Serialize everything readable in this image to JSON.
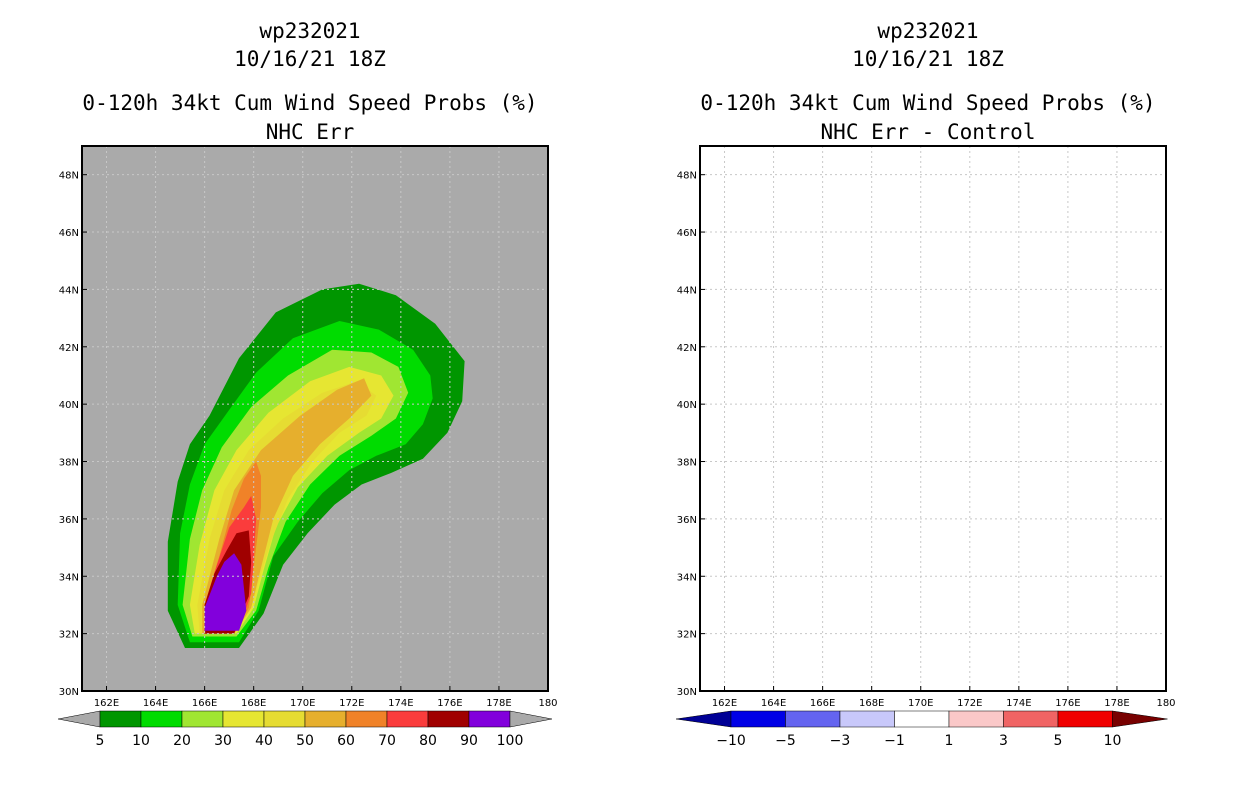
{
  "panels": [
    {
      "storm": "wp232021",
      "date": "10/16/21 18Z",
      "title1": "0-120h 34kt Cum Wind Speed Probs (%)",
      "title2": "NHC Err"
    },
    {
      "storm": "wp232021",
      "date": "10/16/21 18Z",
      "title1": "0-120h 34kt Cum Wind Speed Probs (%)",
      "title2": "NHC Err - Control"
    }
  ],
  "chart_data": [
    {
      "type": "heatmap",
      "title": "0-120h 34kt Cum Wind Speed Probs (%) NHC Err",
      "xlim": [
        161,
        180
      ],
      "ylim": [
        30,
        49
      ],
      "xticks": [
        "162E",
        "164E",
        "166E",
        "168E",
        "170E",
        "172E",
        "174E",
        "176E",
        "178E",
        "180"
      ],
      "yticks": [
        "30N",
        "32N",
        "34N",
        "36N",
        "38N",
        "40N",
        "42N",
        "44N",
        "46N",
        "48N"
      ],
      "grid": true,
      "background": "#aaaaaa",
      "colorbar": {
        "labels": [
          "5",
          "10",
          "20",
          "30",
          "40",
          "50",
          "60",
          "70",
          "80",
          "90",
          "100"
        ],
        "colors": [
          "#009600",
          "#00dc00",
          "#a0e632",
          "#e6e632",
          "#e6dc32",
          "#e6af2d",
          "#f08228",
          "#fa3c3c",
          "#a00000",
          "#8200dc"
        ],
        "extend_color": "#aaaaaa"
      },
      "contours": [
        {
          "level": 5,
          "color": "#009600",
          "points": [
            [
              164.5,
              32.8
            ],
            [
              164.5,
              35.2
            ],
            [
              164.9,
              37.3
            ],
            [
              165.4,
              38.6
            ],
            [
              166.2,
              39.6
            ],
            [
              167.4,
              41.6
            ],
            [
              168.9,
              43.2
            ],
            [
              170.8,
              44.0
            ],
            [
              172.3,
              44.2
            ],
            [
              173.8,
              43.8
            ],
            [
              175.4,
              42.8
            ],
            [
              176.6,
              41.5
            ],
            [
              176.5,
              40.1
            ],
            [
              175.9,
              39.0
            ],
            [
              174.9,
              38.1
            ],
            [
              173.6,
              37.6
            ],
            [
              172.4,
              37.2
            ],
            [
              171.3,
              36.5
            ],
            [
              170.2,
              35.5
            ],
            [
              169.2,
              34.4
            ],
            [
              168.4,
              32.7
            ],
            [
              167.4,
              31.5
            ],
            [
              165.2,
              31.5
            ]
          ]
        },
        {
          "level": 10,
          "color": "#00dc00",
          "points": [
            [
              164.9,
              33.0
            ],
            [
              165.0,
              35.5
            ],
            [
              165.4,
              37.2
            ],
            [
              166.0,
              38.6
            ],
            [
              167.0,
              39.8
            ],
            [
              168.1,
              41.1
            ],
            [
              169.6,
              42.3
            ],
            [
              171.5,
              42.9
            ],
            [
              173.1,
              42.6
            ],
            [
              174.5,
              41.9
            ],
            [
              175.2,
              41.0
            ],
            [
              175.3,
              40.2
            ],
            [
              174.9,
              39.3
            ],
            [
              174.2,
              38.6
            ],
            [
              173.0,
              38.2
            ],
            [
              171.9,
              37.7
            ],
            [
              170.8,
              36.9
            ],
            [
              169.8,
              35.9
            ],
            [
              168.8,
              34.7
            ],
            [
              168.2,
              32.8
            ],
            [
              167.4,
              31.7
            ],
            [
              165.4,
              31.7
            ]
          ]
        },
        {
          "level": 20,
          "color": "#a0e632",
          "points": [
            [
              165.1,
              33.0
            ],
            [
              165.4,
              35.3
            ],
            [
              165.9,
              37.0
            ],
            [
              166.7,
              38.5
            ],
            [
              167.9,
              39.9
            ],
            [
              169.4,
              41.0
            ],
            [
              171.2,
              41.9
            ],
            [
              172.8,
              41.8
            ],
            [
              173.9,
              41.3
            ],
            [
              174.3,
              40.4
            ],
            [
              173.8,
              39.5
            ],
            [
              172.8,
              38.9
            ],
            [
              171.5,
              38.2
            ],
            [
              170.3,
              37.2
            ],
            [
              169.3,
              35.9
            ],
            [
              168.6,
              34.3
            ],
            [
              168.1,
              32.8
            ],
            [
              167.3,
              31.9
            ],
            [
              165.5,
              31.9
            ]
          ]
        },
        {
          "level": 30,
          "color": "#e6e632",
          "points": [
            [
              165.4,
              33.0
            ],
            [
              165.8,
              35.1
            ],
            [
              166.4,
              37.0
            ],
            [
              167.3,
              38.4
            ],
            [
              168.6,
              39.7
            ],
            [
              170.3,
              40.8
            ],
            [
              171.9,
              41.3
            ],
            [
              173.2,
              41.0
            ],
            [
              173.7,
              40.3
            ],
            [
              173.2,
              39.5
            ],
            [
              172.3,
              39.0
            ],
            [
              171.0,
              38.2
            ],
            [
              169.8,
              37.1
            ],
            [
              168.9,
              35.7
            ],
            [
              168.4,
              34.2
            ],
            [
              168.0,
              32.9
            ],
            [
              167.3,
              32.0
            ],
            [
              165.6,
              32.0
            ]
          ]
        },
        {
          "level": 40,
          "color": "#e6dc32",
          "points": [
            [
              165.7,
              33.0
            ],
            [
              166.2,
              35.3
            ],
            [
              166.8,
              37.0
            ],
            [
              167.8,
              38.4
            ],
            [
              169.2,
              39.5
            ],
            [
              170.8,
              40.4
            ],
            [
              172.2,
              40.8
            ],
            [
              173.0,
              40.3
            ],
            [
              172.6,
              39.6
            ],
            [
              171.5,
              39.0
            ],
            [
              170.4,
              38.0
            ],
            [
              169.4,
              36.7
            ],
            [
              168.7,
              35.2
            ],
            [
              168.2,
              33.8
            ],
            [
              167.9,
              32.9
            ],
            [
              167.2,
              32.0
            ],
            [
              165.8,
              32.0
            ]
          ]
        },
        {
          "level": 50,
          "color": "#e6af2d",
          "points": [
            [
              165.9,
              33.0
            ],
            [
              166.6,
              35.3
            ],
            [
              167.2,
              37.0
            ],
            [
              168.3,
              38.4
            ],
            [
              169.9,
              39.6
            ],
            [
              171.4,
              40.5
            ],
            [
              172.5,
              40.9
            ],
            [
              172.8,
              40.3
            ],
            [
              171.9,
              39.5
            ],
            [
              170.7,
              38.6
            ],
            [
              169.6,
              37.5
            ],
            [
              168.8,
              36.0
            ],
            [
              168.3,
              34.3
            ],
            [
              167.9,
              32.9
            ],
            [
              167.2,
              32.0
            ],
            [
              165.9,
              32.0
            ]
          ]
        },
        {
          "level": 60,
          "color": "#f08228",
          "points": [
            [
              166.0,
              33.0
            ],
            [
              166.6,
              34.7
            ],
            [
              167.1,
              36.3
            ],
            [
              167.6,
              37.4
            ],
            [
              168.1,
              38.0
            ],
            [
              168.3,
              37.5
            ],
            [
              168.3,
              36.4
            ],
            [
              168.1,
              35.0
            ],
            [
              167.9,
              33.5
            ],
            [
              167.8,
              32.9
            ],
            [
              167.2,
              32.0
            ],
            [
              166.0,
              32.0
            ]
          ]
        },
        {
          "level": 70,
          "color": "#fa3c3c",
          "points": [
            [
              166.0,
              33.0
            ],
            [
              166.5,
              34.4
            ],
            [
              167.0,
              35.7
            ],
            [
              167.6,
              36.4
            ],
            [
              167.9,
              36.8
            ],
            [
              168.1,
              36.0
            ],
            [
              168.0,
              34.6
            ],
            [
              167.9,
              33.4
            ],
            [
              167.7,
              32.9
            ],
            [
              167.2,
              32.0
            ],
            [
              166.0,
              32.0
            ]
          ]
        },
        {
          "level": 80,
          "color": "#a00000",
          "points": [
            [
              166.0,
              33.0
            ],
            [
              166.4,
              34.1
            ],
            [
              166.9,
              34.9
            ],
            [
              167.3,
              35.5
            ],
            [
              167.8,
              35.6
            ],
            [
              167.9,
              34.5
            ],
            [
              167.8,
              33.3
            ],
            [
              167.6,
              32.9
            ],
            [
              167.2,
              32.0
            ],
            [
              166.0,
              32.0
            ]
          ]
        },
        {
          "level": 90,
          "color": "#8200dc",
          "points": [
            [
              166.0,
              32.9
            ],
            [
              166.5,
              34.0
            ],
            [
              166.8,
              34.5
            ],
            [
              167.2,
              34.8
            ],
            [
              167.5,
              34.4
            ],
            [
              167.6,
              33.6
            ],
            [
              167.7,
              32.8
            ],
            [
              167.4,
              32.1
            ],
            [
              166.0,
              32.1
            ]
          ]
        }
      ]
    },
    {
      "type": "heatmap",
      "title": "0-120h 34kt Cum Wind Speed Probs (%) NHC Err - Control",
      "xlim": [
        161,
        180
      ],
      "ylim": [
        30,
        49
      ],
      "xticks": [
        "162E",
        "164E",
        "166E",
        "168E",
        "170E",
        "172E",
        "174E",
        "176E",
        "178E",
        "180"
      ],
      "yticks": [
        "30N",
        "32N",
        "34N",
        "36N",
        "38N",
        "40N",
        "42N",
        "44N",
        "46N",
        "48N"
      ],
      "grid": true,
      "background": "#ffffff",
      "colorbar": {
        "labels": [
          "-10",
          "-5",
          "-3",
          "-1",
          "1",
          "3",
          "5",
          "10"
        ],
        "colors": [
          "#0000e6",
          "#6464f0",
          "#c8c8fa",
          "#ffffff",
          "#fac8c8",
          "#f06464",
          "#f00000"
        ],
        "extend_low": "#000096",
        "extend_high": "#780000"
      },
      "contours": []
    }
  ]
}
